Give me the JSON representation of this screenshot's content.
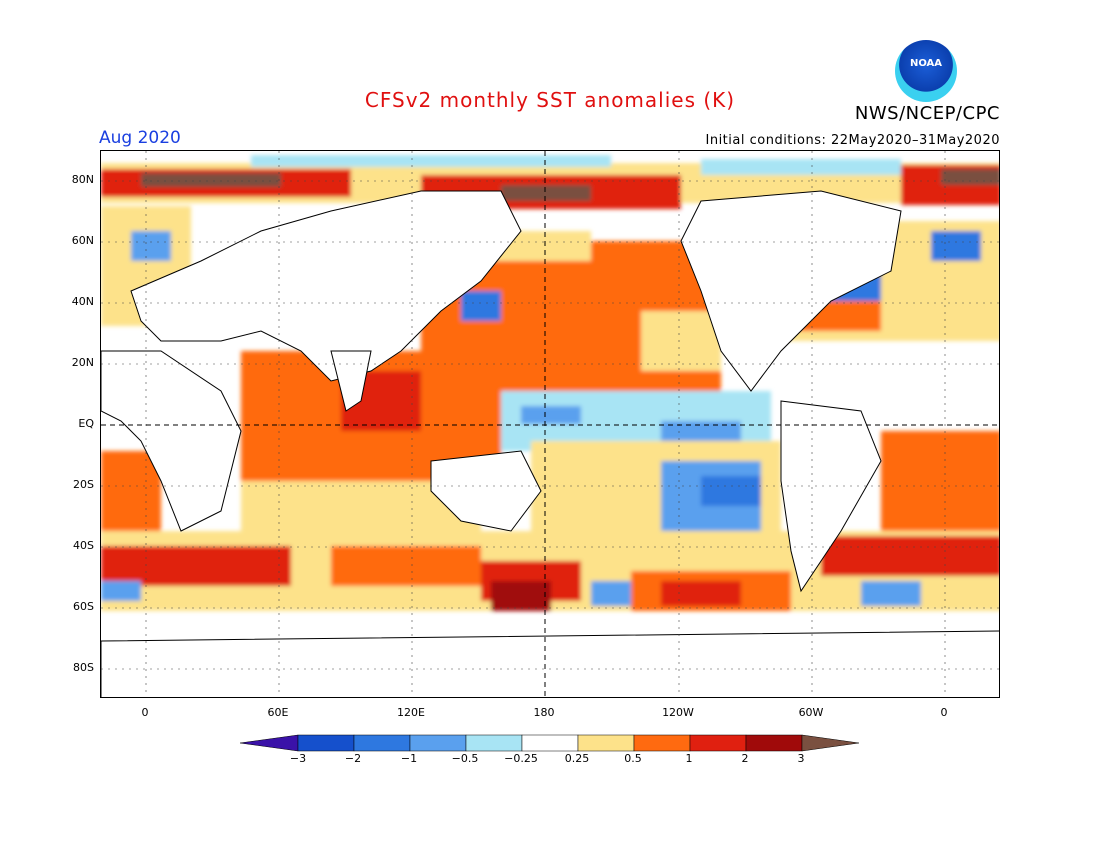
{
  "header": {
    "title": "CFSv2 monthly SST anomalies (K)",
    "month": "Aug 2020",
    "org": "NWS/NCEP/CPC",
    "initial_conditions": "Initial conditions: 22May2020–31May2020",
    "logo_text": "NOAA"
  },
  "map": {
    "lat_labels": [
      "80N",
      "60N",
      "40N",
      "20N",
      "EQ",
      "20S",
      "40S",
      "60S",
      "80S"
    ],
    "lon_labels": [
      "0",
      "60E",
      "120E",
      "180",
      "120W",
      "60W",
      "0"
    ],
    "land_color": "#ffffff",
    "coast_color": "#000000"
  },
  "colorbar": {
    "tick_labels": [
      "−3",
      "−2",
      "−1",
      "−0.5",
      "−0.25",
      "0.25",
      "0.5",
      "1",
      "2",
      "3"
    ],
    "colors": [
      "#3a12a8",
      "#1550cc",
      "#2e78e0",
      "#5aa0ee",
      "#a8e4f4",
      "#ffffff",
      "#fde28a",
      "#ff6a10",
      "#e02010",
      "#a00a0a",
      "#7a5040"
    ]
  },
  "anomaly_regions": [
    {
      "name": "north-pacific-warm",
      "level": "1"
    },
    {
      "name": "equatorial-pacific-cool",
      "level": "-0.5"
    },
    {
      "name": "south-pacific-cool",
      "level": "-1"
    },
    {
      "name": "southern-ocean-warm",
      "level": "2"
    },
    {
      "name": "indian-ocean-warm",
      "level": "1"
    },
    {
      "name": "arctic-warm",
      "level": "3"
    },
    {
      "name": "north-atlantic-cool",
      "level": "-1"
    }
  ]
}
